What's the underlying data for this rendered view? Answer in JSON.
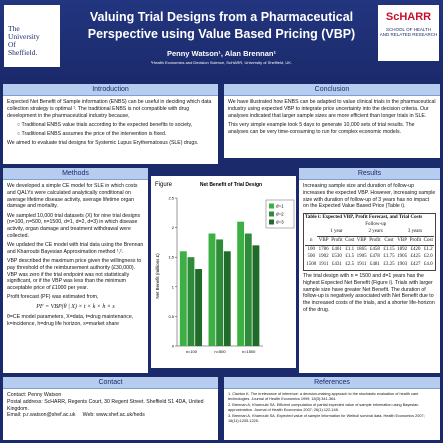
{
  "header": {
    "title_line1": "Valuing Trial Designs from a Pharmaceutical",
    "title_line2": "Perspective using Value Based Pricing (VBP)",
    "authors": "Penny Watson¹, Alan Brennan¹",
    "affiliation": "¹Health Economics and Decision Science, ScHARR, University of Sheffield, UK.",
    "logo_left": [
      "The",
      "University",
      "Of",
      "Sheffield."
    ],
    "logo_right": [
      "ScHARR",
      "SCHOOL OF HEALTH",
      "AND RELATED RESEARCH"
    ]
  },
  "introduction": {
    "heading": "Introduction",
    "text": "Expected Net Benefit of Sample information (ENBS) can be useful in deciding which data collection strategy is optimal ¹. The traditional ENBS is not compatible with drug development in the pharmaceutical industry because,",
    "bullets": [
      "Traditional ENBS value trials according to the expected benefits to society,",
      "Traditional ENBS assumes the price of the intervention is fixed."
    ],
    "closing": "We aimed to evaluate trial designs for Systemic Lupus Erythematosus (SLE) drugs."
  },
  "conclusion": {
    "heading": "Conclusion",
    "paragraphs": [
      "We have illustrated how ENBS can be adapted to value clinical trials in the pharmaceutical industry using expected VBP to integrate price uncertainty into the decision criteria. Our analyses indicated that larger sample sizes are more efficient than longer trials in SLE.",
      "This very simple example took 5 days to generate 10,000 sets of trial results. The analyses can be very time-consuming to run for complex economic models."
    ]
  },
  "methods": {
    "heading": "Methods",
    "paragraphs": [
      "We  developed a simple CE model for SLE in which costs and QALYs were calculated analytically conditional on average lifetime disease activity, average lifetime organ damage and mortality.",
      "We sampled 10,000 trial datasets (X) for nine trial designs (n=100, n=500, n=1500, d=1, d=2, d=3) in which disease activity, organ damage and treatment withdrawal were collected.",
      "We updated the CE model with trial data using the Brennan and Kharroubi Bayesian Approximation method ¹,².",
      "VBP described the maximum price given the willingness to pay threshold of the reimbursement authority (£30,000). VBP was zero if the trial endpoint was not statistically significant, or if the VBP was less than the minimum acceptable price of £1000 per year.",
      "Profit forecast  (PF) was estimated from,"
    ],
    "formula": "PF = VBP(θ | X) × t × k × h × s",
    "note": "θ=CE model parameters, X=data, t=drug maintenance, k=incidence, h=drug life horizon, s=market share"
  },
  "chart_data": {
    "type": "bar",
    "caption": "Figure",
    "title": "Net Benefit of Trial Design",
    "y_label": "Net Benefit (millions £)",
    "categories": [
      "n=100",
      "n=500",
      "n=1500"
    ],
    "series": [
      {
        "name": "d=1",
        "color": "#3cb043",
        "values": [
          1.6,
          1.9,
          2.1
        ]
      },
      {
        "name": "d=2",
        "color": "#2e8b3a",
        "values": [
          1.5,
          1.8,
          1.9
        ]
      },
      {
        "name": "d=3",
        "color": "#1f6b2a",
        "values": [
          1.3,
          1.6,
          1.7
        ]
      }
    ],
    "ylim": [
      0,
      2.5
    ],
    "yticks": [
      0,
      0.5,
      1,
      1.5,
      2,
      2.5
    ]
  },
  "results": {
    "heading": "Results",
    "paragraphs": [
      "Increasing sample size and duration of follow-up increases the expected VBP. However, increasing sample size with duration of follow-up of 3 years has no impact on the Expected Value Based Price (Table i).",
      "The trial design with n = 1500 and d=1 years has the highest Expected Net Benefit (Figure i). Trials with larger sample size have greater Net Benefit. The duration of follow-up is negatively associated with Net Benefit due to the increased costs of the trials, and a shorter life-horizon of the drug."
    ],
    "table": {
      "title": "Table i: Expected VBP, Profit Forecast, and Trial Costs",
      "group": "Follow-up",
      "periods": [
        "1 year",
        "2 years",
        "3 years"
      ],
      "columns": [
        "n",
        "VBP",
        "Profit",
        "Cost",
        "VBP",
        "Profit",
        "Cost",
        "VBP",
        "Profit",
        "Cost"
      ],
      "rows": [
        [
          "100",
          "1786",
          "£461",
          "£1.1",
          "1865",
          "£458",
          "£1.15",
          "1892",
          "£420",
          "£1.2"
        ],
        [
          "500",
          "1902",
          "£530",
          "£1.5",
          "1905",
          "£478",
          "£1.75",
          "1905",
          "£425",
          "£2.0"
        ],
        [
          "1500",
          "1911",
          "£431",
          "£2.5",
          "1911",
          "£481",
          "£3.25",
          "1903",
          "£427",
          "£4.0"
        ]
      ]
    }
  },
  "contact": {
    "heading": "Contact",
    "lines": [
      "Contact: Penny Watson",
      "Postal address: ScHARR, Regents Court, 30 Regent Street. Sheffield S1 4DA, United Kingdom.",
      "Email: p.r.watson@shef.ac.uk",
      "Web: www.shef.ac.uk/heds"
    ]
  },
  "references": {
    "heading": "References",
    "items": [
      "1. Claxton K. The irrelevance of inference: a decision-making approach to the stochastic evaluation of health care technologies. Journal of Health Economics 1999; 18(3):341-364.",
      "2. Brennan A, Kharroubi SA. Efficient computation of partial expected value of sample information using Bayesian approximation. Journal of Health Economics 2007; 26(1):122-148.",
      "3. Brennan A, Kharroubi SA. Expected value of sample information for Weibull survival data. Health Economics 2007; 16(11):1205-1225."
    ]
  }
}
